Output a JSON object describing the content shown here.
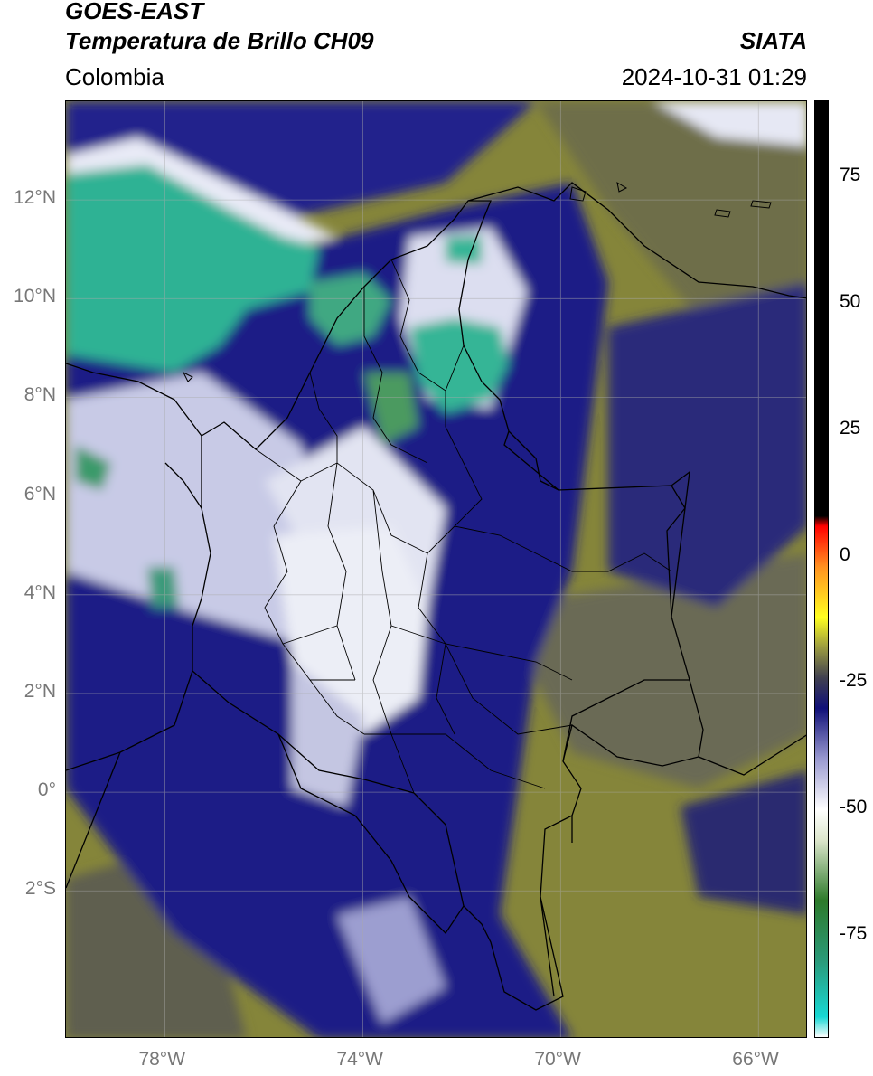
{
  "header": {
    "satellite": "GOES-EAST",
    "product": "Temperatura de Brillo CH09",
    "source": "SIATA",
    "region": "Colombia",
    "datetime": "2024-10-31 01:29"
  },
  "map": {
    "lon_range": [
      -80,
      -65
    ],
    "lat_range": [
      -5,
      14
    ],
    "lat_ticks": [
      {
        "value": 12,
        "label": "12°N"
      },
      {
        "value": 10,
        "label": "10°N"
      },
      {
        "value": 8,
        "label": "8°N"
      },
      {
        "value": 6,
        "label": "6°N"
      },
      {
        "value": 4,
        "label": "4°N"
      },
      {
        "value": 2,
        "label": "2°N"
      },
      {
        "value": 0,
        "label": "0°"
      },
      {
        "value": -2,
        "label": "2°S"
      }
    ],
    "lon_ticks": [
      {
        "value": -78,
        "label": "78°W"
      },
      {
        "value": -74,
        "label": "74°W"
      },
      {
        "value": -70,
        "label": "70°W"
      },
      {
        "value": -66,
        "label": "66°W"
      }
    ],
    "gridlines": true,
    "colors": {
      "warm": "#8a8a34",
      "cold_mid": "#23238f",
      "very_cold": "#eef0f6",
      "coldest": "#2fb89a"
    }
  },
  "colorbar": {
    "range": [
      -95,
      90
    ],
    "ticks": [
      {
        "value": 75,
        "label": "75"
      },
      {
        "value": 50,
        "label": "50"
      },
      {
        "value": 25,
        "label": "25"
      },
      {
        "value": 0,
        "label": "0"
      },
      {
        "value": -25,
        "label": "-25"
      },
      {
        "value": -50,
        "label": "-50"
      },
      {
        "value": -75,
        "label": "-75"
      }
    ],
    "stops": [
      {
        "value": -95,
        "color": "#ffffff"
      },
      {
        "value": -91,
        "color": "#18d8d4"
      },
      {
        "value": -80,
        "color": "#2a9a7a"
      },
      {
        "value": -68,
        "color": "#2d7a2a"
      },
      {
        "value": -56,
        "color": "#dde6cc"
      },
      {
        "value": -50,
        "color": "#ffffff"
      },
      {
        "value": -40,
        "color": "#9a9ad0"
      },
      {
        "value": -30,
        "color": "#101078"
      },
      {
        "value": -24,
        "color": "#404050"
      },
      {
        "value": -18,
        "color": "#9a9a40"
      },
      {
        "value": -12,
        "color": "#ffff20"
      },
      {
        "value": -2,
        "color": "#ff9020"
      },
      {
        "value": 6,
        "color": "#ff0000"
      },
      {
        "value": 8,
        "color": "#000000"
      },
      {
        "value": 90,
        "color": "#000000"
      }
    ]
  }
}
